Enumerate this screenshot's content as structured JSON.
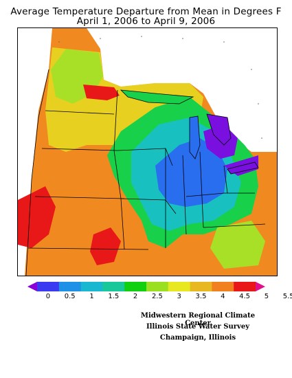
{
  "title": {
    "line1": "Average Temperature Departure from Mean in Degrees F",
    "line2": "April 1, 2006 to April 9, 2006"
  },
  "legend": {
    "ticks": [
      "0",
      "0.5",
      "1",
      "1.5",
      "2",
      "2.5",
      "3",
      "3.5",
      "4",
      "4.5",
      "5",
      "5.5"
    ],
    "colors": [
      "#8a00d8",
      "#3a3af0",
      "#1e90e6",
      "#1ab8d0",
      "#18c89a",
      "#10d010",
      "#9ae020",
      "#e8e820",
      "#e8b820",
      "#f08020",
      "#e81818",
      "#e0108a"
    ]
  },
  "map": {
    "region": "Midwest United States",
    "field_colors": {
      "cold_core": "#7a10e0",
      "cool": "#2a6ef0",
      "mild": "#18c0c0",
      "neutral": "#18d04a",
      "warm": "#a8e028",
      "warmer": "#e8d020",
      "hot": "#f08a20",
      "very_hot": "#e81818"
    }
  },
  "credits": {
    "line1": "Midwestern Regional Climate Center",
    "line2": "Illinois State Water Survey",
    "line3": "Champaign, Illinois"
  }
}
